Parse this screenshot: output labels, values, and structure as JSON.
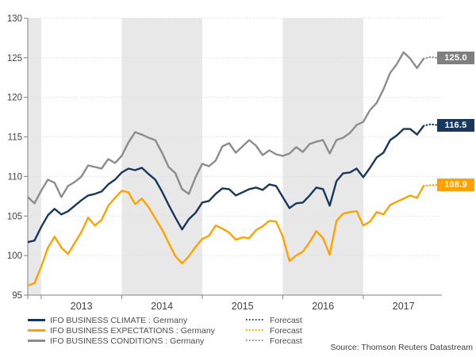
{
  "chart_data": {
    "type": "line",
    "title": "",
    "x_frequency": "monthly",
    "x_start_month": "2012-11",
    "x_end_month_actual": "2017-10",
    "x_end_month_forecast": "2017-12",
    "x_tick_years": [
      "2013",
      "2014",
      "2015",
      "2016",
      "2017"
    ],
    "ylim": [
      95,
      130
    ],
    "y_ticks": [
      95,
      100,
      105,
      110,
      115,
      120,
      125,
      130
    ],
    "grid": "dotted-horizontal",
    "shaded_bands_month_index": [
      [
        0,
        2
      ],
      [
        14,
        26
      ],
      [
        38,
        50
      ]
    ],
    "legend_position": "bottom-left",
    "series": [
      {
        "name": "IFO BUSINESS CLIMATE : Germany",
        "forecast_name": "Forecast",
        "color": "#17375d",
        "badge_color": "#17375d",
        "end_label": "116.5",
        "values": [
          101.7,
          101.9,
          103.6,
          105.1,
          105.9,
          105.2,
          105.6,
          106.3,
          107.0,
          107.6,
          107.8,
          108.1,
          109.0,
          109.6,
          110.5,
          111.0,
          110.8,
          111.1,
          110.3,
          109.6,
          108.1,
          106.4,
          104.8,
          103.3,
          104.6,
          105.4,
          106.7,
          106.9,
          107.8,
          108.5,
          108.4,
          107.6,
          108.0,
          108.4,
          108.6,
          108.3,
          109.0,
          108.8,
          107.4,
          106.0,
          106.6,
          106.7,
          107.6,
          108.6,
          108.4,
          106.3,
          109.4,
          110.4,
          110.5,
          111.0,
          109.9,
          111.1,
          112.4,
          113.0,
          114.6,
          115.2,
          116.0,
          116.0,
          115.3,
          116.4
        ],
        "forecast_values": [
          116.6,
          116.5
        ]
      },
      {
        "name": "IFO BUSINESS EXPECTATIONS : Germany",
        "forecast_name": "Forecast",
        "color": "#ffa200",
        "badge_color": "#ffa200",
        "end_label": "108.9",
        "values": [
          96.2,
          96.5,
          98.6,
          101.0,
          102.4,
          101.0,
          100.2,
          101.6,
          103.0,
          104.8,
          103.8,
          104.5,
          106.3,
          107.3,
          108.2,
          108.0,
          106.5,
          107.2,
          106.1,
          104.7,
          103.3,
          101.6,
          99.9,
          99.0,
          99.9,
          101.1,
          102.1,
          102.5,
          103.8,
          103.4,
          102.9,
          102.0,
          102.3,
          102.2,
          103.2,
          103.7,
          104.4,
          104.3,
          102.4,
          99.3,
          100.0,
          100.5,
          101.7,
          103.1,
          102.2,
          100.1,
          104.4,
          105.3,
          105.5,
          105.6,
          103.8,
          104.3,
          105.5,
          105.2,
          106.4,
          106.8,
          107.2,
          107.6,
          107.3,
          108.8
        ],
        "forecast_values": [
          108.9,
          108.9
        ]
      },
      {
        "name": "IFO BUSINESS CONDITIONS : Germany",
        "forecast_name": "Forecast",
        "color": "#8c8c8c",
        "badge_color": "#7f7f7f",
        "end_label": "125.0",
        "values": [
          107.4,
          106.6,
          108.2,
          109.6,
          109.2,
          107.4,
          108.8,
          109.3,
          110.0,
          111.4,
          111.2,
          111.0,
          112.2,
          111.7,
          112.6,
          114.3,
          115.6,
          115.3,
          114.9,
          114.6,
          113.0,
          111.2,
          110.4,
          108.4,
          107.8,
          109.9,
          111.6,
          111.3,
          112.0,
          113.8,
          114.2,
          113.0,
          113.8,
          114.6,
          113.9,
          112.7,
          113.3,
          112.8,
          112.6,
          112.9,
          113.7,
          113.1,
          114.1,
          114.4,
          114.6,
          112.9,
          114.6,
          114.9,
          115.5,
          116.5,
          116.9,
          118.4,
          119.3,
          121.0,
          123.1,
          124.2,
          125.7,
          124.9,
          123.7,
          124.9
        ],
        "forecast_values": [
          125.1,
          125.0
        ]
      }
    ],
    "source": "Source: Thomson Reuters Datastream"
  },
  "colors": {
    "background": "#ffffff",
    "band": "#e8e8e8",
    "grid": "#d9d9d9",
    "axis": "#808080",
    "tick_label": "#404040",
    "legend_text": "#4d4d4d",
    "badge_text": "#ffffff"
  }
}
